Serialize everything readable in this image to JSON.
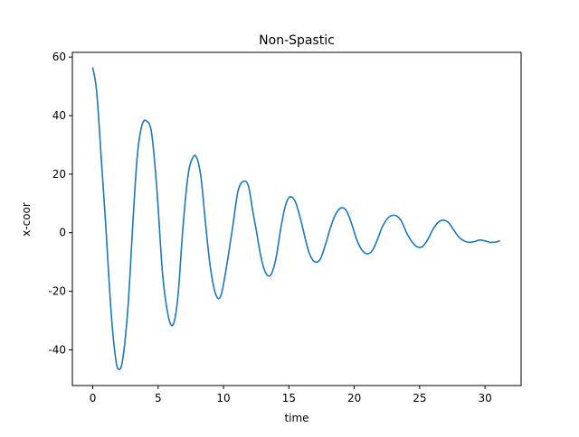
{
  "chart_data": {
    "type": "line",
    "title": "Non-Spastic",
    "xlabel": "time",
    "ylabel": "x-coor",
    "xlim": [
      -1.56,
      32.76
    ],
    "ylim": [
      -52.2,
      61.6
    ],
    "x_ticks": [
      0,
      5,
      10,
      15,
      20,
      25,
      30
    ],
    "y_ticks": [
      -40,
      -20,
      0,
      20,
      40,
      60
    ],
    "grid": false,
    "series": [
      {
        "color": "#1f77b4",
        "x": [
          0.0,
          0.3,
          0.7,
          1.0,
          1.4,
          1.75,
          2.0,
          2.3,
          2.7,
          3.05,
          3.4,
          3.75,
          4.1,
          4.5,
          4.9,
          5.3,
          5.6,
          5.95,
          6.25,
          6.55,
          6.9,
          7.3,
          7.7,
          8.0,
          8.3,
          8.65,
          9.0,
          9.4,
          9.8,
          10.25,
          10.7,
          11.1,
          11.5,
          11.9,
          12.25,
          12.5,
          12.85,
          13.2,
          13.6,
          14.0,
          14.4,
          14.75,
          15.1,
          15.5,
          15.9,
          16.25,
          16.6,
          17.0,
          17.4,
          17.8,
          18.2,
          18.6,
          19.0,
          19.4,
          19.8,
          20.2,
          20.6,
          21.0,
          21.4,
          21.8,
          22.2,
          22.7,
          23.2,
          23.6,
          24.0,
          24.4,
          24.8,
          25.2,
          25.6,
          26.0,
          26.4,
          26.8,
          27.2,
          27.6,
          28.0,
          28.4,
          28.8,
          29.2,
          29.6,
          30.0,
          30.4,
          30.8,
          31.1
        ],
        "values": [
          56.3,
          48.0,
          22.0,
          2.0,
          -27.0,
          -43.0,
          -46.7,
          -43.0,
          -25.0,
          2.0,
          26.0,
          36.5,
          38.2,
          34.0,
          15.0,
          -12.0,
          -24.0,
          -31.2,
          -30.0,
          -20.0,
          2.0,
          20.0,
          26.0,
          25.0,
          18.0,
          2.0,
          -12.0,
          -21.0,
          -21.5,
          -11.0,
          2.0,
          14.0,
          17.5,
          16.0,
          7.0,
          1.0,
          -8.0,
          -13.5,
          -14.5,
          -9.0,
          2.0,
          9.5,
          12.3,
          10.5,
          4.5,
          -2.0,
          -7.5,
          -10.0,
          -9.0,
          -4.0,
          2.0,
          6.5,
          8.5,
          7.5,
          3.0,
          -2.5,
          -6.0,
          -7.2,
          -6.0,
          -2.0,
          2.5,
          5.5,
          5.8,
          4.0,
          0.0,
          -3.0,
          -4.8,
          -4.8,
          -2.5,
          1.0,
          3.5,
          4.3,
          3.5,
          1.0,
          -1.5,
          -2.8,
          -3.3,
          -3.0,
          -2.5,
          -2.8,
          -3.3,
          -3.2,
          -2.8
        ]
      }
    ]
  }
}
